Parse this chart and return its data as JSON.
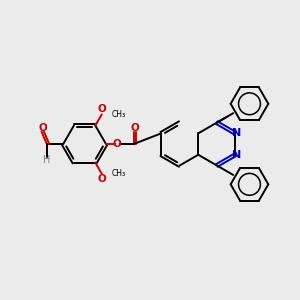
{
  "bg_color": "#ebebeb",
  "bond_color": "#000000",
  "nitrogen_color": "#0000cc",
  "oxygen_color": "#cc0000",
  "aldehyde_h_color": "#708090",
  "line_width": 1.4,
  "fig_size": [
    3.0,
    3.0
  ],
  "dpi": 100,
  "xlim": [
    0,
    10
  ],
  "ylim": [
    0,
    10
  ]
}
